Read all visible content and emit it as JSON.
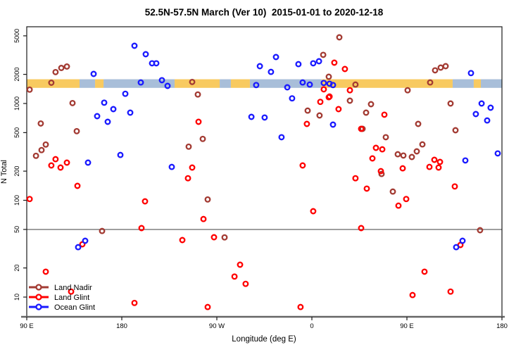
{
  "title": "52.5N-57.5N March (Ver 10)  2015-01-01 to 2020-12-18",
  "chart_data": {
    "type": "scatter",
    "title": "52.5N-57.5N March (Ver 10)  2015-01-01 to 2020-12-18",
    "xlabel": "Longitude (deg E)",
    "ylabel": "N Total",
    "x_axis": {
      "range_deg": [
        90,
        540
      ],
      "ticks_deg": [
        90,
        180,
        270,
        360,
        450,
        540
      ],
      "tick_labels": [
        "90 E",
        "180",
        "90 W",
        "0",
        "90 E",
        "180"
      ]
    },
    "y_axis": {
      "scale": "log",
      "ticks": [
        5000,
        2000,
        1000,
        500,
        200,
        100,
        50,
        20,
        10
      ],
      "range": [
        7,
        5500
      ]
    },
    "reference_line": {
      "value": 50,
      "color": "#888888"
    },
    "coast_band": {
      "n_range": [
        1450,
        1780
      ],
      "land_color": "#F8CA60",
      "ocean_color": "#A8BED9",
      "land_segments_deg": [
        [
          90,
          140
        ],
        [
          154.7,
          162.7
        ],
        [
          230,
          272.7
        ],
        [
          283.3,
          301.3
        ],
        [
          369.3,
          493.3
        ],
        [
          513.3,
          520
        ]
      ],
      "ocean_segments_deg": [
        [
          140,
          154.7
        ],
        [
          162.7,
          230
        ],
        [
          272.7,
          283.3
        ],
        [
          301.3,
          369.3
        ],
        [
          493.3,
          513.3
        ],
        [
          520,
          540
        ]
      ]
    },
    "legend": {
      "position": "bottom-left",
      "items": [
        "Land Nadir",
        "Land Glint",
        "Ocean Glint"
      ]
    },
    "series": [
      {
        "name": "Land Nadir",
        "color": "#A33B33",
        "points": [
          [
            117.3,
            2110
          ],
          [
            122.7,
            2330
          ],
          [
            128,
            2410
          ],
          [
            113.3,
            1640
          ],
          [
            92.7,
            1390
          ],
          [
            133.3,
            1010
          ],
          [
            103.3,
            622
          ],
          [
            137.3,
            518
          ],
          [
            108,
            377
          ],
          [
            104,
            330
          ],
          [
            98.7,
            288
          ],
          [
            246.7,
            1670
          ],
          [
            252,
            1240
          ],
          [
            256.7,
            431
          ],
          [
            243.3,
            358
          ],
          [
            161.3,
            48.2
          ],
          [
            261.3,
            102
          ],
          [
            277.3,
            41.4
          ],
          [
            386,
            4830
          ],
          [
            370.7,
            3180
          ],
          [
            376,
            1890
          ],
          [
            401.3,
            1570
          ],
          [
            396,
            1070
          ],
          [
            416,
            984
          ],
          [
            356,
            845
          ],
          [
            367.3,
            752
          ],
          [
            411.3,
            804
          ],
          [
            408,
            547
          ],
          [
            430,
            448
          ],
          [
            450.7,
            1370
          ],
          [
            476.7,
            2200
          ],
          [
            482,
            2350
          ],
          [
            486.7,
            2430
          ],
          [
            472,
            1650
          ],
          [
            491.3,
            1000
          ],
          [
            496,
            529
          ],
          [
            460.7,
            615
          ],
          [
            464.7,
            378
          ],
          [
            459.3,
            320
          ],
          [
            454.7,
            280
          ],
          [
            441.3,
            299
          ],
          [
            446.7,
            290
          ],
          [
            519.3,
            49.1
          ],
          [
            426,
            187
          ],
          [
            436.7,
            123
          ]
        ]
      },
      {
        "name": "Land Glint",
        "color": "#FF0000",
        "points": [
          [
            117.3,
            266
          ],
          [
            113.3,
            229
          ],
          [
            122,
            218
          ],
          [
            128,
            245
          ],
          [
            92.7,
            103
          ],
          [
            138,
            141
          ],
          [
            108,
            18.3
          ],
          [
            132,
            11.4
          ],
          [
            142.7,
            35.1
          ],
          [
            252.7,
            647
          ],
          [
            246.7,
            218
          ],
          [
            242.7,
            169
          ],
          [
            202,
            97.5
          ],
          [
            198.7,
            51.6
          ],
          [
            257.3,
            64.1
          ],
          [
            237.3,
            38.8
          ],
          [
            267.3,
            41.5
          ],
          [
            261.3,
            7.9
          ],
          [
            192,
            8.7
          ],
          [
            292,
            21.6
          ],
          [
            286.7,
            16.3
          ],
          [
            297.3,
            13.7
          ],
          [
            381.3,
            2640
          ],
          [
            391.3,
            2270
          ],
          [
            376.7,
            1180
          ],
          [
            368,
            1040
          ],
          [
            371.3,
            1400
          ],
          [
            396,
            1370
          ],
          [
            376,
            1160
          ],
          [
            385.3,
            875
          ],
          [
            355.3,
            615
          ],
          [
            428.7,
            766
          ],
          [
            406.7,
            547
          ],
          [
            420.7,
            348
          ],
          [
            426.7,
            336
          ],
          [
            417.3,
            271
          ],
          [
            446,
            214
          ],
          [
            476,
            262
          ],
          [
            481.3,
            249
          ],
          [
            471.3,
            221
          ],
          [
            480,
            218
          ],
          [
            401.3,
            169
          ],
          [
            412,
            132
          ],
          [
            442,
            88.1
          ],
          [
            449.3,
            103
          ],
          [
            361.3,
            77.1
          ],
          [
            406.7,
            51.6
          ],
          [
            495.3,
            139
          ],
          [
            500.7,
            34.5
          ],
          [
            466.7,
            18.3
          ],
          [
            455.3,
            10.5
          ],
          [
            491.3,
            11.4
          ],
          [
            349.3,
            7.9
          ],
          [
            425.3,
            200
          ],
          [
            351.3,
            229
          ]
        ]
      },
      {
        "name": "Ocean Glint",
        "color": "#1A1AFF",
        "points": [
          [
            192,
            3950
          ],
          [
            202.7,
            3230
          ],
          [
            208.7,
            2600
          ],
          [
            212.7,
            2600
          ],
          [
            153.3,
            2020
          ],
          [
            198,
            1650
          ],
          [
            218,
            1740
          ],
          [
            223.3,
            1520
          ],
          [
            183.3,
            1260
          ],
          [
            163.3,
            1020
          ],
          [
            172,
            875
          ],
          [
            156.7,
            740
          ],
          [
            188,
            804
          ],
          [
            166.7,
            647
          ],
          [
            178.7,
            294
          ],
          [
            148,
            245
          ],
          [
            227.3,
            221
          ],
          [
            145.3,
            38.2
          ],
          [
            138.7,
            32.8
          ],
          [
            310.7,
            2430
          ],
          [
            326,
            3020
          ],
          [
            321.3,
            2120
          ],
          [
            307.3,
            1550
          ],
          [
            302.7,
            728
          ],
          [
            315.3,
            716
          ],
          [
            347.3,
            2550
          ],
          [
            351.3,
            1650
          ],
          [
            358,
            1570
          ],
          [
            371.3,
            1630
          ],
          [
            376.7,
            1600
          ],
          [
            380,
            1550
          ],
          [
            361.3,
            2600
          ],
          [
            366.7,
            2730
          ],
          [
            336.7,
            1470
          ],
          [
            341.3,
            1130
          ],
          [
            380,
            605
          ],
          [
            331.3,
            448
          ],
          [
            510.7,
            2060
          ],
          [
            520.7,
            1000
          ],
          [
            529.3,
            904
          ],
          [
            515.3,
            778
          ],
          [
            526,
            668
          ],
          [
            505.3,
            258
          ],
          [
            536,
            305
          ],
          [
            496.7,
            32.8
          ],
          [
            502.7,
            38.2
          ]
        ]
      }
    ]
  }
}
